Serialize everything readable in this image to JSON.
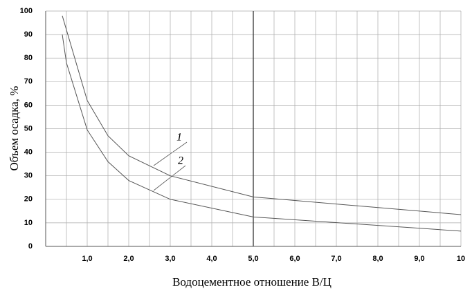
{
  "chart_data": {
    "type": "line",
    "x_label": "Водоцементное отношение В/Ц",
    "y_label": "Объем осадка, %",
    "xlim": [
      0,
      10
    ],
    "ylim": [
      0,
      100
    ],
    "xticks": [
      {
        "value": 1,
        "label": "1,0"
      },
      {
        "value": 2,
        "label": "2,0"
      },
      {
        "value": 3,
        "label": "3,0"
      },
      {
        "value": 4,
        "label": "4,0"
      },
      {
        "value": 5,
        "label": "5,0"
      },
      {
        "value": 6,
        "label": "6,0"
      },
      {
        "value": 7,
        "label": "7,0"
      },
      {
        "value": 8,
        "label": "8,0"
      },
      {
        "value": 9,
        "label": "9,0"
      },
      10
    ],
    "yticks": [
      0,
      10,
      20,
      30,
      40,
      50,
      60,
      70,
      80,
      90,
      100
    ],
    "grid": true,
    "emphasized_x": 5,
    "series": [
      {
        "name": "1",
        "color": "#555555",
        "x": [
          0.4,
          1,
          1.5,
          2,
          3,
          5,
          10
        ],
        "values": [
          98,
          62,
          47,
          38.5,
          30,
          21,
          13.5
        ]
      },
      {
        "name": "2",
        "color": "#555555",
        "x": [
          0.4,
          0.5,
          1,
          1.5,
          2,
          3,
          5,
          10
        ],
        "values": [
          90,
          78,
          49.5,
          36,
          28,
          20,
          12.5,
          6.5
        ]
      }
    ]
  }
}
